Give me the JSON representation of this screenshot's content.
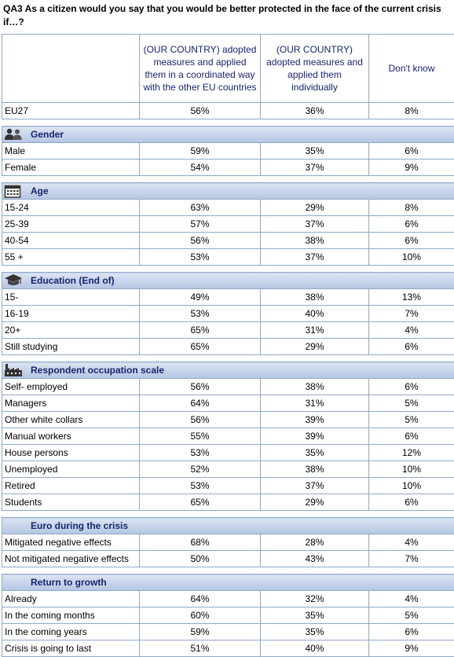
{
  "question": "QA3  As a citizen would you say that you would be better protected in the face of the current crisis if…?",
  "columns": [
    "(OUR COUNTRY) adopted measures and applied them in a coordinated way with the other EU countries",
    "(OUR COUNTRY) adopted measures and applied them individually",
    "Don't know"
  ],
  "eu27": {
    "label": "EU27",
    "values": [
      "56%",
      "36%",
      "8%"
    ]
  },
  "sections": [
    {
      "title": "Gender",
      "icon": "people-icon",
      "rows": [
        {
          "label": "Male",
          "values": [
            "59%",
            "35%",
            "6%"
          ]
        },
        {
          "label": "Female",
          "values": [
            "54%",
            "37%",
            "9%"
          ]
        }
      ]
    },
    {
      "title": "Age",
      "icon": "calendar-icon",
      "rows": [
        {
          "label": "15-24",
          "values": [
            "63%",
            "29%",
            "8%"
          ]
        },
        {
          "label": "25-39",
          "values": [
            "57%",
            "37%",
            "6%"
          ]
        },
        {
          "label": "40-54",
          "values": [
            "56%",
            "38%",
            "6%"
          ]
        },
        {
          "label": "55 +",
          "values": [
            "53%",
            "37%",
            "10%"
          ]
        }
      ]
    },
    {
      "title": "Education (End of)",
      "icon": "graduation-cap-icon",
      "rows": [
        {
          "label": "15-",
          "values": [
            "49%",
            "38%",
            "13%"
          ]
        },
        {
          "label": "16-19",
          "values": [
            "53%",
            "40%",
            "7%"
          ]
        },
        {
          "label": "20+",
          "values": [
            "65%",
            "31%",
            "4%"
          ]
        },
        {
          "label": "Still studying",
          "values": [
            "65%",
            "29%",
            "6%"
          ]
        }
      ]
    },
    {
      "title": "Respondent occupation scale",
      "icon": "factory-icon",
      "rows": [
        {
          "label": "Self- employed",
          "values": [
            "56%",
            "38%",
            "6%"
          ]
        },
        {
          "label": "Managers",
          "values": [
            "64%",
            "31%",
            "5%"
          ]
        },
        {
          "label": "Other white collars",
          "values": [
            "56%",
            "39%",
            "5%"
          ]
        },
        {
          "label": "Manual workers",
          "values": [
            "55%",
            "39%",
            "6%"
          ]
        },
        {
          "label": "House persons",
          "values": [
            "53%",
            "35%",
            "12%"
          ]
        },
        {
          "label": "Unemployed",
          "values": [
            "52%",
            "38%",
            "10%"
          ]
        },
        {
          "label": "Retired",
          "values": [
            "53%",
            "37%",
            "10%"
          ]
        },
        {
          "label": "Students",
          "values": [
            "65%",
            "29%",
            "6%"
          ]
        }
      ]
    },
    {
      "title": "Euro during the crisis",
      "icon": "",
      "rows": [
        {
          "label": "Mitigated negative effects",
          "values": [
            "68%",
            "28%",
            "4%"
          ]
        },
        {
          "label": "Not mitigated negative effects",
          "values": [
            "50%",
            "43%",
            "7%"
          ]
        }
      ]
    },
    {
      "title": "Return to growth",
      "icon": "",
      "rows": [
        {
          "label": "Already",
          "values": [
            "64%",
            "32%",
            "4%"
          ]
        },
        {
          "label": "In the coming months",
          "values": [
            "60%",
            "35%",
            "5%"
          ]
        },
        {
          "label": "In the coming years",
          "values": [
            "59%",
            "35%",
            "6%"
          ]
        },
        {
          "label": "Crisis is going to last",
          "values": [
            "51%",
            "40%",
            "9%"
          ]
        }
      ]
    }
  ]
}
